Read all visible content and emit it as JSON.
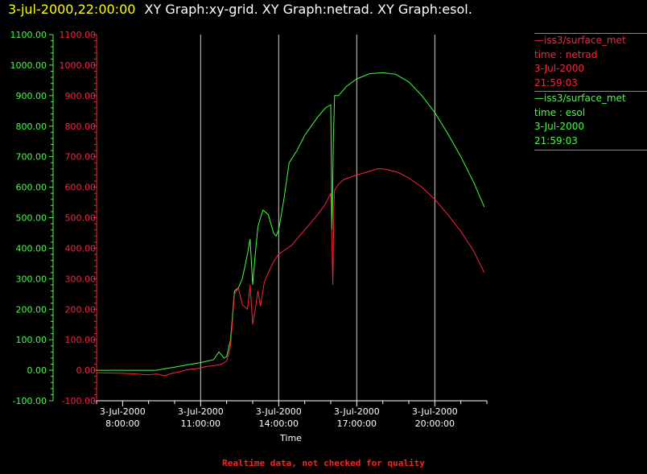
{
  "header": {
    "timestamp": "3-jul-2000,22:00:00",
    "title": "XY Graph:xy-grid.  XY Graph:netrad.  XY Graph:esol."
  },
  "footer": {
    "note": "Realtime data, not checked for quality"
  },
  "legend": [
    {
      "name": "—iss3/surface_met",
      "line2": "time : netrad",
      "line3": "3-Jul-2000",
      "line4": "21:59:03",
      "color": "#ff2040"
    },
    {
      "name": "—iss3/surface_met",
      "line2": "time : esol",
      "line3": "3-Jul-2000",
      "line4": "21:59:03",
      "color": "#40ff40"
    }
  ],
  "chart_data": {
    "type": "line",
    "xlabel": "Time",
    "ylabel": "",
    "ylim": [
      -100,
      1100
    ],
    "xlim_hours": [
      7.0,
      22.0
    ],
    "y_ticks": [
      "-100.00",
      "0.00",
      "100.00",
      "200.00",
      "300.00",
      "400.00",
      "500.00",
      "600.00",
      "700.00",
      "800.00",
      "900.00",
      "1000.00",
      "1100.00"
    ],
    "x_ticks": [
      {
        "date": "3-Jul-2000",
        "time": "8:00:00",
        "hour": 8
      },
      {
        "date": "3-Jul-2000",
        "time": "11:00:00",
        "hour": 11
      },
      {
        "date": "3-Jul-2000",
        "time": "14:00:00",
        "hour": 14
      },
      {
        "date": "3-Jul-2000",
        "time": "17:00:00",
        "hour": 17
      },
      {
        "date": "3-Jul-2000",
        "time": "20:00:00",
        "hour": 20
      }
    ],
    "grid": "vertical",
    "series": [
      {
        "name": "netrad",
        "color": "#ff2040",
        "points": [
          [
            7.0,
            -8
          ],
          [
            7.5,
            -9
          ],
          [
            8.0,
            -10
          ],
          [
            8.5,
            -12
          ],
          [
            9.0,
            -15
          ],
          [
            9.3,
            -12
          ],
          [
            9.6,
            -18
          ],
          [
            9.9,
            -10
          ],
          [
            10.2,
            -5
          ],
          [
            10.5,
            2
          ],
          [
            10.8,
            5
          ],
          [
            11.0,
            8
          ],
          [
            11.2,
            12
          ],
          [
            11.5,
            15
          ],
          [
            11.8,
            20
          ],
          [
            12.0,
            30
          ],
          [
            12.15,
            80
          ],
          [
            12.3,
            250
          ],
          [
            12.45,
            270
          ],
          [
            12.6,
            215
          ],
          [
            12.8,
            200
          ],
          [
            12.9,
            280
          ],
          [
            13.0,
            150
          ],
          [
            13.1,
            200
          ],
          [
            13.2,
            260
          ],
          [
            13.3,
            210
          ],
          [
            13.45,
            290
          ],
          [
            13.6,
            320
          ],
          [
            13.8,
            355
          ],
          [
            14.0,
            380
          ],
          [
            14.5,
            410
          ],
          [
            15.0,
            460
          ],
          [
            15.5,
            510
          ],
          [
            15.8,
            545
          ],
          [
            16.0,
            580
          ],
          [
            16.05,
            400
          ],
          [
            16.08,
            280
          ],
          [
            16.12,
            540
          ],
          [
            16.15,
            590
          ],
          [
            16.3,
            610
          ],
          [
            16.5,
            625
          ],
          [
            17.0,
            640
          ],
          [
            17.5,
            652
          ],
          [
            17.8,
            660
          ],
          [
            18.0,
            660
          ],
          [
            18.3,
            655
          ],
          [
            18.6,
            648
          ],
          [
            19.0,
            630
          ],
          [
            19.5,
            600
          ],
          [
            20.0,
            560
          ],
          [
            20.5,
            510
          ],
          [
            21.0,
            455
          ],
          [
            21.5,
            390
          ],
          [
            21.9,
            320
          ]
        ]
      },
      {
        "name": "esol",
        "color": "#40ff40",
        "points": [
          [
            7.0,
            0
          ],
          [
            7.5,
            0
          ],
          [
            8.0,
            0
          ],
          [
            8.5,
            0
          ],
          [
            9.0,
            0
          ],
          [
            9.3,
            0
          ],
          [
            9.6,
            5
          ],
          [
            10.0,
            10
          ],
          [
            10.5,
            18
          ],
          [
            11.0,
            25
          ],
          [
            11.5,
            35
          ],
          [
            11.7,
            60
          ],
          [
            11.9,
            40
          ],
          [
            12.0,
            45
          ],
          [
            12.15,
            100
          ],
          [
            12.3,
            260
          ],
          [
            12.45,
            270
          ],
          [
            12.6,
            300
          ],
          [
            12.8,
            380
          ],
          [
            12.9,
            430
          ],
          [
            13.0,
            280
          ],
          [
            13.1,
            380
          ],
          [
            13.2,
            470
          ],
          [
            13.3,
            500
          ],
          [
            13.4,
            525
          ],
          [
            13.6,
            510
          ],
          [
            13.8,
            450
          ],
          [
            13.9,
            440
          ],
          [
            14.0,
            460
          ],
          [
            14.2,
            560
          ],
          [
            14.4,
            680
          ],
          [
            14.7,
            720
          ],
          [
            15.0,
            770
          ],
          [
            15.5,
            830
          ],
          [
            15.8,
            860
          ],
          [
            16.0,
            870
          ],
          [
            16.05,
            460
          ],
          [
            16.1,
            750
          ],
          [
            16.15,
            900
          ],
          [
            16.3,
            900
          ],
          [
            16.6,
            930
          ],
          [
            17.0,
            955
          ],
          [
            17.5,
            972
          ],
          [
            18.0,
            975
          ],
          [
            18.5,
            970
          ],
          [
            19.0,
            945
          ],
          [
            19.5,
            900
          ],
          [
            20.0,
            845
          ],
          [
            20.5,
            775
          ],
          [
            21.0,
            700
          ],
          [
            21.5,
            615
          ],
          [
            21.9,
            535
          ]
        ]
      }
    ]
  }
}
